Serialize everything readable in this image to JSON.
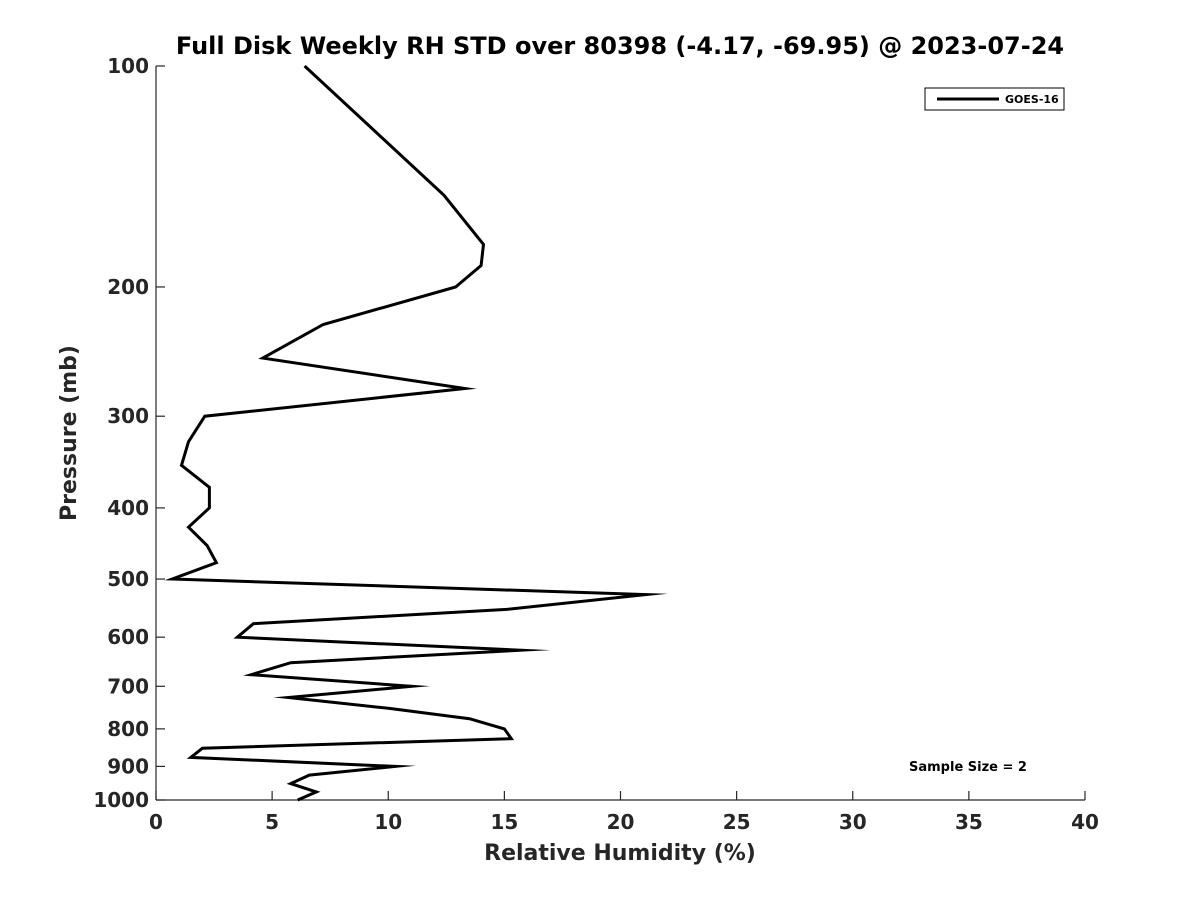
{
  "chart_data": {
    "type": "line",
    "title": "Full Disk Weekly RH STD over 80398 (-4.17, -69.95) @ 2023-07-24",
    "xlabel": "Relative Humidity (%)",
    "ylabel": "Pressure (mb)",
    "xlim": [
      0,
      40
    ],
    "ylim": [
      100,
      1000
    ],
    "y_scale": "log",
    "y_inverted": true,
    "grid": false,
    "x_ticks": [
      0,
      5,
      10,
      15,
      20,
      25,
      30,
      35,
      40
    ],
    "y_ticks": [
      100,
      200,
      300,
      400,
      500,
      600,
      700,
      800,
      900,
      1000
    ],
    "legend": {
      "placement": "top-right",
      "entries": [
        "GOES-16"
      ]
    },
    "annotation": "Sample Size = 2",
    "series": [
      {
        "name": "GOES-16",
        "color": "#000000",
        "points": [
          {
            "p": 100,
            "rh": 6.4
          },
          {
            "p": 125,
            "rh": 9.7
          },
          {
            "p": 150,
            "rh": 12.4
          },
          {
            "p": 175,
            "rh": 14.1
          },
          {
            "p": 187,
            "rh": 14.0
          },
          {
            "p": 200,
            "rh": 12.9
          },
          {
            "p": 225,
            "rh": 7.2
          },
          {
            "p": 250,
            "rh": 4.6
          },
          {
            "p": 275,
            "rh": 13.3
          },
          {
            "p": 300,
            "rh": 2.1
          },
          {
            "p": 325,
            "rh": 1.4
          },
          {
            "p": 350,
            "rh": 1.1
          },
          {
            "p": 375,
            "rh": 2.3
          },
          {
            "p": 400,
            "rh": 2.3
          },
          {
            "p": 425,
            "rh": 1.4
          },
          {
            "p": 450,
            "rh": 2.2
          },
          {
            "p": 475,
            "rh": 2.6
          },
          {
            "p": 500,
            "rh": 0.7
          },
          {
            "p": 525,
            "rh": 21.1
          },
          {
            "p": 550,
            "rh": 15.1
          },
          {
            "p": 575,
            "rh": 4.2
          },
          {
            "p": 600,
            "rh": 3.5
          },
          {
            "p": 625,
            "rh": 15.7
          },
          {
            "p": 650,
            "rh": 5.8
          },
          {
            "p": 675,
            "rh": 4.1
          },
          {
            "p": 700,
            "rh": 11.0
          },
          {
            "p": 725,
            "rh": 5.7
          },
          {
            "p": 750,
            "rh": 10.0
          },
          {
            "p": 775,
            "rh": 13.5
          },
          {
            "p": 800,
            "rh": 15.0
          },
          {
            "p": 825,
            "rh": 15.3
          },
          {
            "p": 850,
            "rh": 2.0
          },
          {
            "p": 875,
            "rh": 1.5
          },
          {
            "p": 900,
            "rh": 10.3
          },
          {
            "p": 925,
            "rh": 6.6
          },
          {
            "p": 950,
            "rh": 5.8
          },
          {
            "p": 975,
            "rh": 6.9
          },
          {
            "p": 1000,
            "rh": 6.1
          }
        ]
      }
    ]
  }
}
